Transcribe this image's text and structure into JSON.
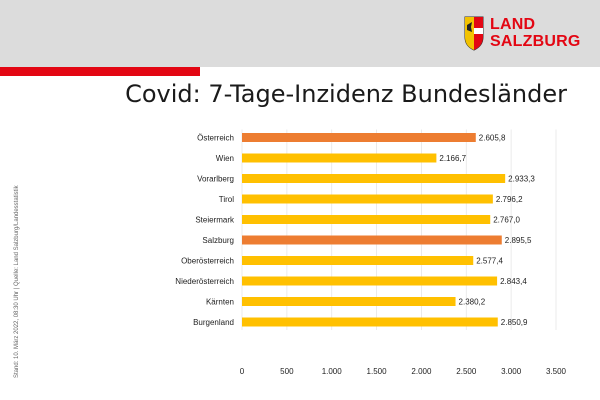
{
  "brand": {
    "line1": "LAND",
    "line2": "SALZBURG",
    "accent_color": "#e30613",
    "header_bg": "#dcdcdc",
    "logo_icon": "salzburg-coat-of-arms-icon"
  },
  "side_note": "Stand: 10. März 2022, 08:30 Uhr | Quelle: Land Salzburg/Landesstatistik",
  "chart_data": {
    "type": "bar",
    "orientation": "horizontal",
    "title": "Covid: 7-Tage-Inzidenz Bundesländer",
    "categories": [
      "Österreich",
      "Wien",
      "Vorarlberg",
      "Tirol",
      "Steiermark",
      "Salzburg",
      "Oberösterreich",
      "Niederösterreich",
      "Kärnten",
      "Burgenland"
    ],
    "values": [
      2605.8,
      2166.7,
      2933.3,
      2796.2,
      2767.0,
      2895.5,
      2577.4,
      2843.4,
      2380.2,
      2850.9
    ],
    "value_labels": [
      "2.605,8",
      "2.166,7",
      "2.933,3",
      "2.796,2",
      "2.767,0",
      "2.895,5",
      "2.577,4",
      "2.843,4",
      "2.380,2",
      "2.850,9"
    ],
    "bar_colors": [
      "#ed7d31",
      "#ffc000",
      "#ffc000",
      "#ffc000",
      "#ffc000",
      "#ed7d31",
      "#ffc000",
      "#ffc000",
      "#ffc000",
      "#ffc000"
    ],
    "xlim": [
      0,
      3500
    ],
    "x_ticks": [
      0,
      500,
      1000,
      1500,
      2000,
      2500,
      3000,
      3500
    ],
    "x_tick_labels": [
      "0",
      "500",
      "1.000",
      "1.500",
      "2.000",
      "2.500",
      "3.000",
      "3.500"
    ],
    "grid": true,
    "legend": "none",
    "xlabel": "",
    "ylabel": ""
  }
}
